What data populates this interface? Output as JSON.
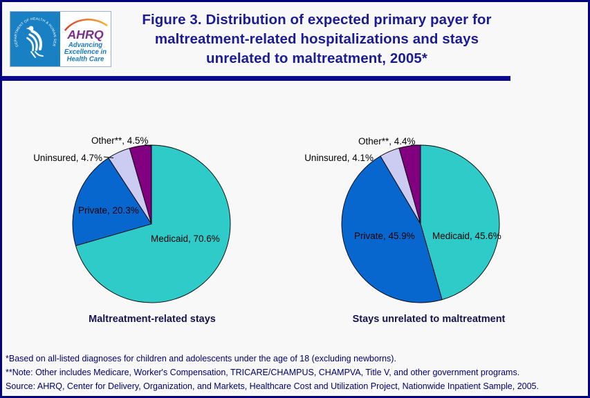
{
  "page": {
    "background": "#F8F8F9",
    "border_color": "#020281",
    "divider_color": "#0A0A8A",
    "title_color": "#1B1B96",
    "footnote_color": "#00006E"
  },
  "header": {
    "title_lines": [
      "Figure 3. Distribution of expected primary payer for",
      "maltreatment-related hospitalizations and stays",
      "unrelated to maltreatment, 2005*"
    ],
    "logo": {
      "hhs_ring_text": "DEPARTMENT OF HEALTH & HUMAN SERVICES • USA",
      "ahrq": "AHRQ",
      "tagline_lines": [
        "Advancing",
        "Excellence in",
        "Health Care"
      ],
      "hhs_blue": "#1A80C4",
      "ahrq_purple": "#7B2E8C",
      "tagline_blue": "#1B79C0"
    }
  },
  "chart_data": [
    {
      "type": "pie",
      "title": "Maltreatment-related stays",
      "start_angle_deg": 0,
      "direction": "clockwise",
      "slices": [
        {
          "name": "Medicaid",
          "value": 70.6,
          "label": "Medicaid, 70.6%",
          "color": "#2FCBC9"
        },
        {
          "name": "Private",
          "value": 20.3,
          "label": "Private, 20.3%",
          "color": "#0767CE"
        },
        {
          "name": "Uninsured",
          "value": 4.7,
          "label": "Uninsured, 4.7%",
          "color": "#CCCCF2"
        },
        {
          "name": "Other",
          "value": 4.5,
          "label": "Other**, 4.5%",
          "color": "#800080"
        }
      ]
    },
    {
      "type": "pie",
      "title": "Stays unrelated to maltreatment",
      "start_angle_deg": 0,
      "direction": "clockwise",
      "slices": [
        {
          "name": "Medicaid",
          "value": 45.6,
          "label": "Medicaid, 45.6%",
          "color": "#2FCBC9"
        },
        {
          "name": "Private",
          "value": 45.9,
          "label": "Private, 45.9%",
          "color": "#0767CE"
        },
        {
          "name": "Uninsured",
          "value": 4.1,
          "label": "Uninsured, 4.1%",
          "color": "#CCCCF2"
        },
        {
          "name": "Other",
          "value": 4.4,
          "label": "Other**, 4.4%",
          "color": "#800080"
        }
      ]
    }
  ],
  "footnotes": [
    "*Based on all-listed diagnoses for children and adolescents under the age of 18 (excluding newborns).",
    "**Note: Other includes Medicare, Worker's Compensation, TRICARE/CHAMPUS, CHAMPVA, Title V, and other government programs.",
    "Source: AHRQ, Center for Delivery, Organization, and Markets, Healthcare Cost and Utilization Project, Nationwide Inpatient Sample, 2005."
  ]
}
